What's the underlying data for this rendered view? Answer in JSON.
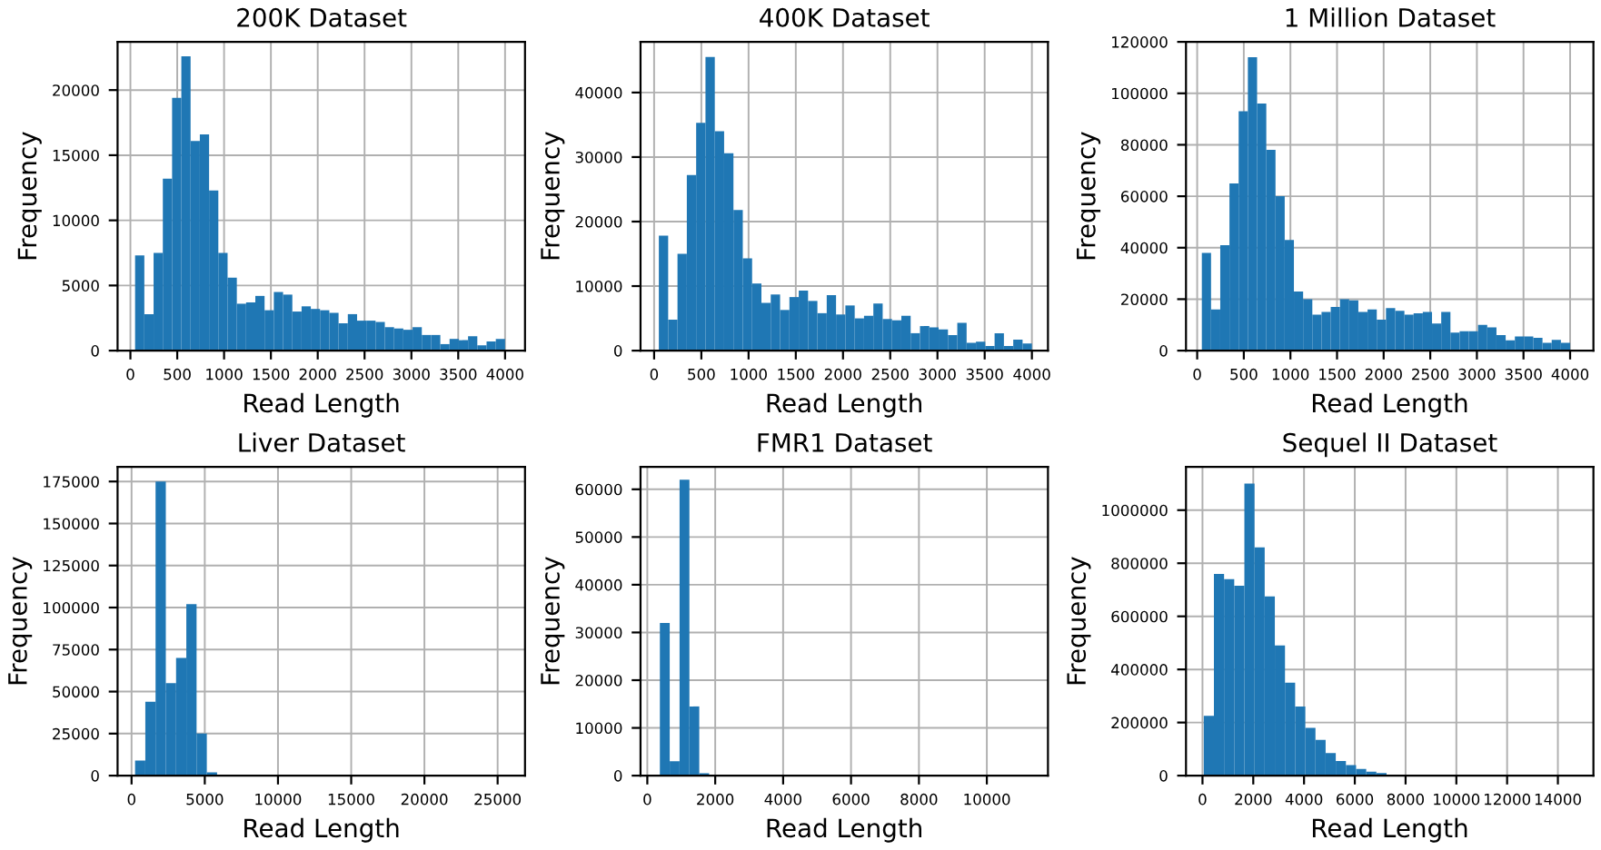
{
  "chart_data": [
    {
      "type": "histogram",
      "title": "200K Dataset",
      "xlabel": "Read Length",
      "ylabel": "Frequency",
      "color": "#1f77b4",
      "grid": true,
      "xlim": [
        -137,
        4213
      ],
      "ylim": [
        0,
        23700
      ],
      "xticks": [
        0,
        500,
        1000,
        1500,
        2000,
        2500,
        3000,
        3500,
        4000
      ],
      "yticks": [
        0,
        5000,
        10000,
        15000,
        20000
      ],
      "bins": [
        50,
        148.75,
        247.5,
        346.25,
        445,
        543.75,
        642.5,
        741.25,
        840,
        938.75,
        1037.5,
        1136.25,
        1235,
        1333.75,
        1432.5,
        1531.25,
        1630,
        1728.75,
        1827.5,
        1926.25,
        2025,
        2123.75,
        2222.5,
        2321.25,
        2420,
        2518.75,
        2617.5,
        2716.25,
        2815,
        2913.75,
        3012.5,
        3111.25,
        3210,
        3308.75,
        3407.5,
        3506.25,
        3605,
        3703.75,
        3802.5,
        3901.25,
        4000
      ],
      "values": [
        7300,
        2800,
        7500,
        13200,
        19400,
        22600,
        16100,
        16600,
        12300,
        7500,
        5600,
        3600,
        3700,
        4200,
        3100,
        4500,
        4300,
        3000,
        3400,
        3200,
        3100,
        2900,
        2100,
        2800,
        2300,
        2300,
        2200,
        1800,
        1700,
        1600,
        1800,
        1200,
        1200,
        500,
        900,
        800,
        1100,
        400,
        700,
        900
      ]
    },
    {
      "type": "histogram",
      "title": "400K Dataset",
      "xlabel": "Read Length",
      "ylabel": "Frequency",
      "color": "#1f77b4",
      "grid": true,
      "xlim": [
        -144,
        4170
      ],
      "ylim": [
        0,
        47850
      ],
      "xticks": [
        0,
        500,
        1000,
        1500,
        2000,
        2500,
        3000,
        3500,
        4000
      ],
      "yticks": [
        0,
        10000,
        20000,
        30000,
        40000
      ],
      "bins": [
        50,
        148.75,
        247.5,
        346.25,
        445,
        543.75,
        642.5,
        741.25,
        840,
        938.75,
        1037.5,
        1136.25,
        1235,
        1333.75,
        1432.5,
        1531.25,
        1630,
        1728.75,
        1827.5,
        1926.25,
        2025,
        2123.75,
        2222.5,
        2321.25,
        2420,
        2518.75,
        2617.5,
        2716.25,
        2815,
        2913.75,
        3012.5,
        3111.25,
        3210,
        3308.75,
        3407.5,
        3506.25,
        3605,
        3703.75,
        3802.5,
        3901.25,
        4000
      ],
      "values": [
        17800,
        4800,
        15000,
        27200,
        35300,
        45500,
        34000,
        30600,
        21800,
        14300,
        10400,
        7400,
        8700,
        6300,
        8300,
        9300,
        7700,
        5800,
        8600,
        5600,
        7000,
        5000,
        5400,
        7300,
        4900,
        4700,
        5400,
        2700,
        3800,
        3600,
        3300,
        2400,
        4300,
        1200,
        1400,
        700,
        2700,
        700,
        1700,
        1100
      ]
    },
    {
      "type": "histogram",
      "title": "1 Million Dataset",
      "xlabel": "Read Length",
      "ylabel": "Frequency",
      "color": "#1f77b4",
      "grid": true,
      "xlim": [
        -120,
        4250
      ],
      "ylim": [
        0,
        120000
      ],
      "xticks": [
        0,
        500,
        1000,
        1500,
        2000,
        2500,
        3000,
        3500,
        4000
      ],
      "yticks": [
        0,
        20000,
        40000,
        60000,
        80000,
        100000,
        120000
      ],
      "bins": [
        50,
        148.75,
        247.5,
        346.25,
        445,
        543.75,
        642.5,
        741.25,
        840,
        938.75,
        1037.5,
        1136.25,
        1235,
        1333.75,
        1432.5,
        1531.25,
        1630,
        1728.75,
        1827.5,
        1926.25,
        2025,
        2123.75,
        2222.5,
        2321.25,
        2420,
        2518.75,
        2617.5,
        2716.25,
        2815,
        2913.75,
        3012.5,
        3111.25,
        3210,
        3308.75,
        3407.5,
        3506.25,
        3605,
        3703.75,
        3802.5,
        3901.25,
        4000
      ],
      "values": [
        38000,
        16000,
        41000,
        65000,
        93000,
        114000,
        96000,
        78000,
        60000,
        43000,
        23000,
        20000,
        14000,
        15000,
        17000,
        20000,
        19500,
        15000,
        16000,
        12000,
        16500,
        15500,
        14000,
        14500,
        15000,
        10500,
        15000,
        7000,
        7500,
        7500,
        10000,
        9000,
        6000,
        4000,
        5500,
        5500,
        5000,
        3000,
        4200,
        3000
      ]
    },
    {
      "type": "histogram",
      "title": "Liver Dataset",
      "xlabel": "Read Length",
      "ylabel": "Frequency",
      "color": "#1f77b4",
      "grid": true,
      "xlim": [
        -955,
        26870
      ],
      "ylim": [
        0,
        183700
      ],
      "xticks": [
        0,
        5000,
        10000,
        15000,
        20000,
        25000
      ],
      "yticks": [
        0,
        25000,
        50000,
        75000,
        100000,
        125000,
        150000,
        175000
      ],
      "bins": [
        240,
        940,
        1640,
        2340,
        3040,
        3740,
        4440,
        5140,
        5840
      ],
      "values": [
        9000,
        44000,
        175000,
        55000,
        70000,
        102000,
        25000,
        2000
      ]
    },
    {
      "type": "histogram",
      "title": "FMR1 Dataset",
      "xlabel": "Read Length",
      "ylabel": "Frequency",
      "color": "#1f77b4",
      "grid": true,
      "xlim": [
        -200,
        11800
      ],
      "ylim": [
        0,
        64700
      ],
      "xticks": [
        0,
        2000,
        4000,
        6000,
        8000,
        10000
      ],
      "yticks": [
        0,
        10000,
        20000,
        30000,
        40000,
        50000,
        60000
      ],
      "bins": [
        370,
        660,
        950,
        1240,
        1530,
        1820
      ],
      "values": [
        32000,
        3000,
        62000,
        14500,
        500
      ]
    },
    {
      "type": "histogram",
      "title": "Sequel II Dataset",
      "xlabel": "Read Length",
      "ylabel": "Frequency",
      "color": "#1f77b4",
      "grid": true,
      "xlim": [
        -650,
        15400
      ],
      "ylim": [
        0,
        1163000
      ],
      "xticks": [
        0,
        2000,
        4000,
        6000,
        8000,
        10000,
        12000,
        14000
      ],
      "yticks": [
        0,
        200000,
        400000,
        600000,
        800000,
        1000000
      ],
      "bins": [
        50,
        450,
        850,
        1250,
        1650,
        2050,
        2450,
        2850,
        3250,
        3650,
        4050,
        4450,
        4850,
        5250,
        5650,
        6050,
        6450,
        6850,
        7250,
        7650,
        8050,
        8450,
        8850
      ],
      "values": [
        225000,
        760000,
        740000,
        715000,
        1100000,
        860000,
        675000,
        490000,
        350000,
        260000,
        180000,
        135000,
        85000,
        55000,
        40000,
        25000,
        15000,
        10000,
        null,
        null,
        null,
        null
      ]
    }
  ]
}
